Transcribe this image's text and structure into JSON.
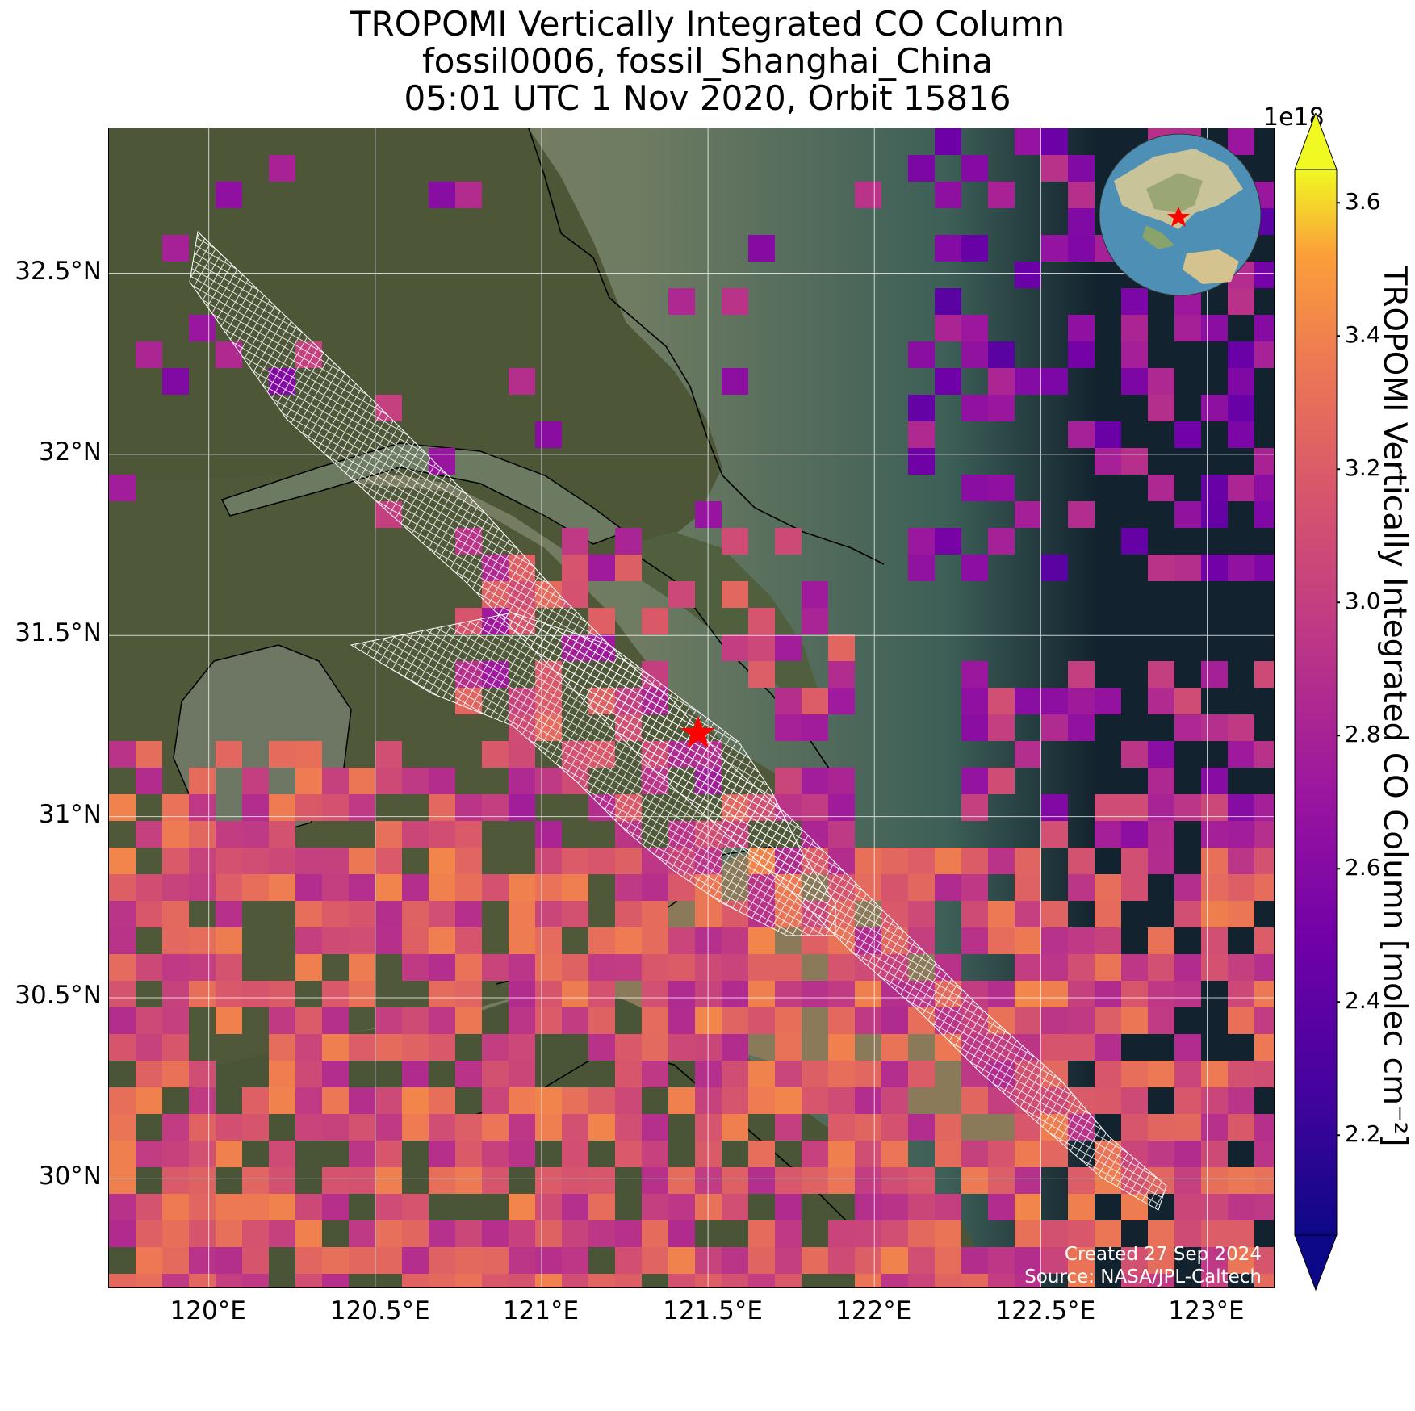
{
  "titles": {
    "line1": "TROPOMI Vertically Integrated CO Column",
    "line2": "fossil0006, fossil_Shanghai_China",
    "line3": "05:01 UTC 1 Nov 2020, Orbit 15816"
  },
  "axes": {
    "lon_ticks": [
      "120°E",
      "120.5°E",
      "121°E",
      "121.5°E",
      "122°E",
      "122.5°E",
      "123°E"
    ],
    "lat_ticks": [
      "32.5°N",
      "32°N",
      "31.5°N",
      "31°N",
      "30.5°N",
      "30°N"
    ]
  },
  "colorbar": {
    "label": "TROPOMI Vertically Integrated CO Column [molec cm⁻²]",
    "multiplier": "1e18",
    "ticks": [
      "2.2",
      "2.4",
      "2.6",
      "2.8",
      "3.0",
      "3.2",
      "3.4",
      "3.6"
    ],
    "colormap": "plasma",
    "range": [
      2.05,
      3.65
    ],
    "extend": "both"
  },
  "credit": {
    "line1": "Created 27 Sep 2024",
    "line2": "Source: NASA/JPL-Caltech"
  },
  "marker": {
    "name": "site-star",
    "lon": 121.47,
    "lat": 31.23,
    "color": "#ff0000"
  },
  "map_extent": {
    "lon": [
      119.7,
      123.2
    ],
    "lat": [
      29.7,
      32.9
    ]
  },
  "colors": {
    "land": "#4b5535",
    "sea_dark": "#12222e",
    "estuary": "#8c7a5c",
    "lake": "#6e7863",
    "grid": "#ffffff"
  }
}
